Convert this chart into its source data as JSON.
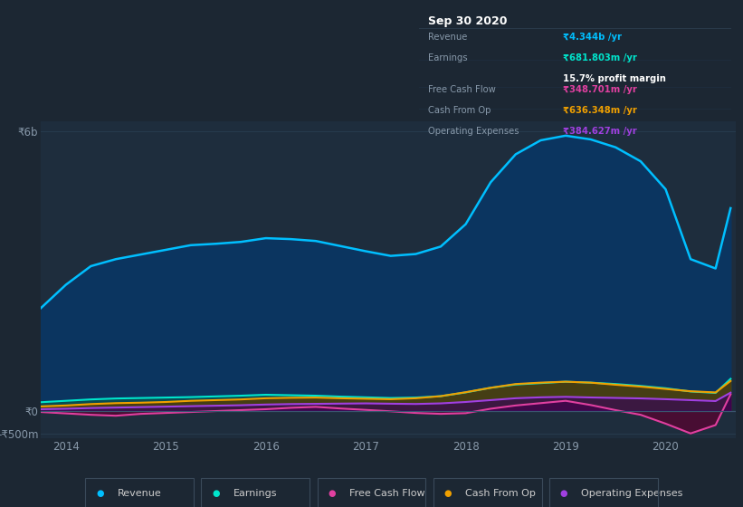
{
  "background_color": "#1c2733",
  "plot_bg_color": "#1e2d3d",
  "grid_color": "#263a4d",
  "title_box": {
    "date": "Sep 30 2020",
    "rows": [
      {
        "label": "Revenue",
        "value": "₹4.344b /yr",
        "value_color": "#00bfff"
      },
      {
        "label": "Earnings",
        "value": "₹681.803m /yr",
        "value_color": "#00e5cc",
        "sub": "15.7% profit margin"
      },
      {
        "label": "Free Cash Flow",
        "value": "₹348.701m /yr",
        "value_color": "#e040a0"
      },
      {
        "label": "Cash From Op",
        "value": "₹636.348m /yr",
        "value_color": "#f0a000"
      },
      {
        "label": "Operating Expenses",
        "value": "₹384.627m /yr",
        "value_color": "#a040e0"
      }
    ]
  },
  "years": [
    2013.75,
    2014.0,
    2014.25,
    2014.5,
    2014.75,
    2015.0,
    2015.25,
    2015.5,
    2015.75,
    2016.0,
    2016.25,
    2016.5,
    2016.75,
    2017.0,
    2017.25,
    2017.5,
    2017.75,
    2018.0,
    2018.25,
    2018.5,
    2018.75,
    2019.0,
    2019.25,
    2019.5,
    2019.75,
    2020.0,
    2020.25,
    2020.5,
    2020.65
  ],
  "revenue": [
    2200,
    2700,
    3100,
    3250,
    3350,
    3450,
    3550,
    3580,
    3620,
    3700,
    3680,
    3640,
    3530,
    3420,
    3320,
    3360,
    3520,
    4000,
    4900,
    5500,
    5800,
    5900,
    5820,
    5650,
    5350,
    4750,
    3250,
    3050,
    4344
  ],
  "earnings": [
    180,
    210,
    240,
    260,
    270,
    280,
    290,
    305,
    320,
    340,
    330,
    320,
    300,
    285,
    270,
    280,
    310,
    390,
    490,
    560,
    590,
    620,
    600,
    570,
    530,
    480,
    410,
    380,
    682
  ],
  "free_cash_flow": [
    -30,
    -60,
    -90,
    -110,
    -70,
    -50,
    -30,
    -10,
    10,
    30,
    60,
    80,
    45,
    15,
    -15,
    -50,
    -70,
    -55,
    40,
    110,
    160,
    210,
    120,
    10,
    -90,
    -280,
    -490,
    -310,
    349
  ],
  "cash_from_op": [
    90,
    110,
    140,
    160,
    170,
    185,
    210,
    225,
    240,
    265,
    275,
    280,
    265,
    255,
    245,
    265,
    310,
    395,
    490,
    570,
    600,
    620,
    600,
    555,
    515,
    465,
    415,
    390,
    636
  ],
  "operating_expenses": [
    30,
    40,
    55,
    65,
    75,
    85,
    95,
    105,
    115,
    130,
    140,
    145,
    150,
    155,
    148,
    142,
    155,
    185,
    225,
    265,
    285,
    295,
    282,
    272,
    262,
    245,
    225,
    205,
    385
  ],
  "ylim": [
    -600,
    6200
  ],
  "yticks": [
    -500,
    0,
    6000
  ],
  "ytick_labels": [
    "-₹500m",
    "₹0",
    "₹6b"
  ],
  "xticks": [
    2014,
    2015,
    2016,
    2017,
    2018,
    2019,
    2020
  ],
  "legend": [
    {
      "label": "Revenue",
      "color": "#00bfff"
    },
    {
      "label": "Earnings",
      "color": "#00e5cc"
    },
    {
      "label": "Free Cash Flow",
      "color": "#e040a0"
    },
    {
      "label": "Cash From Op",
      "color": "#f0a000"
    },
    {
      "label": "Operating Expenses",
      "color": "#a040e0"
    }
  ]
}
